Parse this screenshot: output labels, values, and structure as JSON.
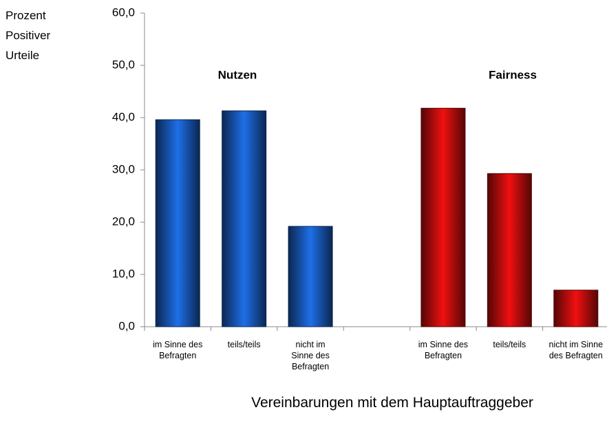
{
  "chart_data": {
    "type": "bar",
    "y_label": "Prozent Positiver Urteile",
    "x_label": "Vereinbarungen mit dem Hauptauftraggeber",
    "annotations": [
      "Nutzen",
      "Fairness"
    ],
    "categories": [
      "im Sinne des Befragten",
      "teils/teils",
      "nicht im Sinne des Befragten",
      null,
      "im Sinne des Befragten",
      "teils/teils",
      "nicht im Sinne des Befragten"
    ],
    "values": [
      39.6,
      41.3,
      19.2,
      null,
      41.8,
      29.3,
      7.0
    ],
    "colors": [
      "#1e6fe8",
      "#1e6fe8",
      "#1e6fe8",
      null,
      "#f01010",
      "#f01010",
      "#f01010"
    ],
    "ylim": [
      0,
      60
    ],
    "yticks": [
      {
        "value": 0,
        "label": "0,0"
      },
      {
        "value": 10,
        "label": "10,0"
      },
      {
        "value": 20,
        "label": "20,0"
      },
      {
        "value": 30,
        "label": "30,0"
      },
      {
        "value": 40,
        "label": "40,0"
      },
      {
        "value": 50,
        "label": "50,0"
      },
      {
        "value": 60,
        "label": "60,0"
      }
    ],
    "grid": false
  }
}
